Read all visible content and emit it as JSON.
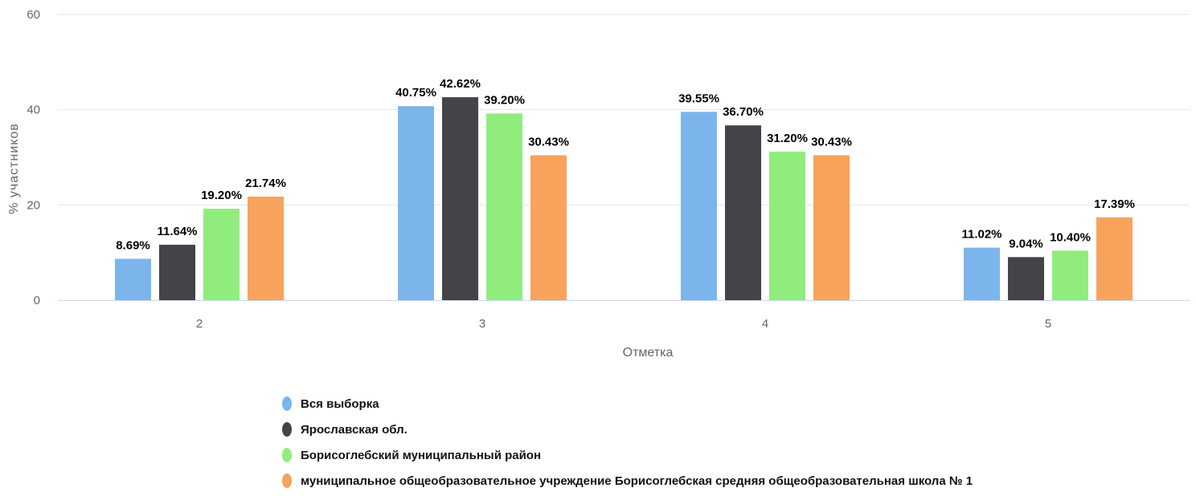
{
  "chart_data": {
    "type": "bar",
    "xlabel": "Отметка",
    "ylabel": "% участников",
    "ylim": [
      0,
      60
    ],
    "yticks": [
      0,
      20,
      40,
      60
    ],
    "grid": true,
    "legend_position": "bottom",
    "categories": [
      "2",
      "3",
      "4",
      "5"
    ],
    "series": [
      {
        "name": "Вся выборка",
        "color": "#7cb5ec",
        "values": [
          8.69,
          40.75,
          39.55,
          11.02
        ],
        "labels": [
          "8.69%",
          "40.75%",
          "39.55%",
          "11.02%"
        ]
      },
      {
        "name": "Ярославская обл.",
        "color": "#434348",
        "values": [
          11.64,
          42.62,
          36.7,
          9.04
        ],
        "labels": [
          "11.64%",
          "42.62%",
          "36.70%",
          "9.04%"
        ]
      },
      {
        "name": "Борисоглебский муниципальный район",
        "color": "#90ed7d",
        "values": [
          19.2,
          39.2,
          31.2,
          10.4
        ],
        "labels": [
          "19.20%",
          "39.20%",
          "31.20%",
          "10.40%"
        ]
      },
      {
        "name": "муниципальное общеобразовательное учреждение Борисоглебская средняя общеобразовательная школа № 1",
        "color": "#f7a35c",
        "values": [
          21.74,
          30.43,
          30.43,
          17.39
        ],
        "labels": [
          "21.74%",
          "30.43%",
          "30.43%",
          "17.39%"
        ]
      }
    ]
  }
}
